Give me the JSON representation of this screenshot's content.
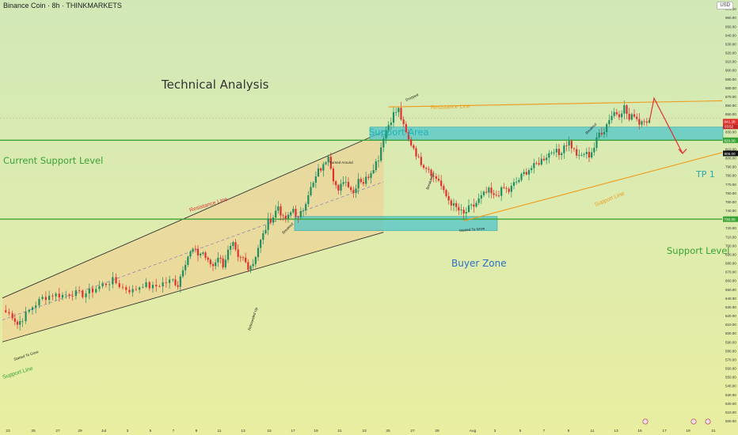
{
  "title_bar": "Binance Coin · 8h · THINKMARKETS",
  "currency": "USD",
  "heading": "Technical Analysis",
  "colors": {
    "bg_top": "#d1e8b6",
    "bg_bottom": "#e9eea0",
    "up": "#1f8f63",
    "down": "#e0312f",
    "support_line": "#3aa335",
    "resistance_line": "#e0312f",
    "orange": "#ef9a1a",
    "zone_fill": "#4fc6c9",
    "blue_text": "#2b6fc7",
    "channel_fill": "#f2cc8f",
    "channel_edge": "#333333",
    "price_label": "#e0312f"
  },
  "labels": {
    "current_support": "Current Support Level",
    "support_area": "Support Area",
    "buyer_zone": "Buyer Zone",
    "support_level": "Support Level",
    "tp1": "TP 1",
    "resistance_line_channel": "Resistance Line",
    "resistance_line_top": "Resistance Line",
    "support_line_bottom": "Support Line",
    "support_line_right": "Support Line",
    "turned_around": "Turned Around",
    "breakout_1": "Breakout",
    "breakout_2": "Breakout",
    "breakdown": "Breakdown",
    "dropped": "Dropped",
    "started_grow_1": "Started To Grow",
    "started_grow_2": "Started To Grow",
    "rebounded_up": "Rebounded Up"
  },
  "price_tags": {
    "current": "841.28",
    "timer": "03:52",
    "level_820": "820.00",
    "level_805": "805.00",
    "level_730": "730.00"
  },
  "chart_data": {
    "type": "candlestick",
    "symbol": "Binance Coin",
    "interval": "8h",
    "ylim": [
      500,
      980
    ],
    "y_ticks": [
      500,
      510,
      520,
      530,
      540,
      550,
      560,
      570,
      580,
      590,
      600,
      610,
      620,
      630,
      640,
      650,
      660,
      670,
      680,
      690,
      700,
      710,
      720,
      730,
      740,
      750,
      760,
      770,
      780,
      790,
      800,
      810,
      820,
      830,
      840,
      850,
      860,
      870,
      880,
      890,
      900,
      910,
      920,
      930,
      940,
      950,
      960,
      970
    ],
    "x_ticks": [
      "23",
      "25",
      "27",
      "29",
      "Jul",
      "3",
      "5",
      "7",
      "9",
      "11",
      "13",
      "15",
      "17",
      "19",
      "21",
      "23",
      "25",
      "27",
      "29",
      "Aug",
      "3",
      "5",
      "7",
      "9",
      "11",
      "13",
      "15",
      "17",
      "19",
      "21"
    ],
    "horizontal_levels": [
      820,
      730
    ],
    "zones": [
      {
        "name": "Support Area",
        "from": 820,
        "to": 835
      },
      {
        "name": "Buyer Zone",
        "from": 717,
        "to": 733
      }
    ],
    "close_path": [
      [
        0,
        626
      ],
      [
        2,
        620
      ],
      [
        3,
        610
      ],
      [
        4,
        617
      ],
      [
        6,
        630
      ],
      [
        8,
        640
      ],
      [
        10,
        644
      ],
      [
        12,
        643
      ],
      [
        14,
        646
      ],
      [
        16,
        644
      ],
      [
        18,
        649
      ],
      [
        20,
        655
      ],
      [
        22,
        660
      ],
      [
        24,
        652
      ],
      [
        26,
        648
      ],
      [
        28,
        656
      ],
      [
        30,
        652
      ],
      [
        32,
        657
      ],
      [
        34,
        660
      ],
      [
        35,
        655
      ],
      [
        36,
        675
      ],
      [
        37,
        688
      ],
      [
        38,
        695
      ],
      [
        39,
        690
      ],
      [
        40,
        692
      ],
      [
        41,
        681
      ],
      [
        42,
        677
      ],
      [
        43,
        688
      ],
      [
        44,
        678
      ],
      [
        45,
        693
      ],
      [
        46,
        700
      ],
      [
        47,
        684
      ],
      [
        48,
        685
      ],
      [
        49,
        676
      ],
      [
        50,
        680
      ],
      [
        51,
        698
      ],
      [
        52,
        712
      ],
      [
        53,
        727
      ],
      [
        54,
        733
      ],
      [
        55,
        745
      ],
      [
        56,
        730
      ],
      [
        57,
        732
      ],
      [
        58,
        742
      ],
      [
        59,
        730
      ],
      [
        60,
        742
      ],
      [
        61,
        760
      ],
      [
        62,
        770
      ],
      [
        63,
        785
      ],
      [
        64,
        790
      ],
      [
        65,
        805
      ],
      [
        66,
        777
      ],
      [
        67,
        760
      ],
      [
        68,
        775
      ],
      [
        69,
        770
      ],
      [
        70,
        760
      ],
      [
        71,
        777
      ],
      [
        72,
        772
      ],
      [
        73,
        780
      ],
      [
        74,
        790
      ],
      [
        75,
        800
      ],
      [
        76,
        825
      ],
      [
        77,
        838
      ],
      [
        78,
        850
      ],
      [
        79,
        855
      ],
      [
        80,
        835
      ],
      [
        81,
        820
      ],
      [
        82,
        812
      ],
      [
        83,
        798
      ],
      [
        84,
        792
      ],
      [
        85,
        788
      ],
      [
        86,
        778
      ],
      [
        87,
        775
      ],
      [
        88,
        760
      ],
      [
        89,
        752
      ],
      [
        90,
        745
      ],
      [
        91,
        740
      ],
      [
        92,
        735
      ],
      [
        93,
        742
      ],
      [
        94,
        745
      ],
      [
        95,
        752
      ],
      [
        96,
        758
      ],
      [
        97,
        762
      ],
      [
        98,
        755
      ],
      [
        99,
        760
      ],
      [
        100,
        765
      ],
      [
        101,
        762
      ],
      [
        102,
        770
      ],
      [
        103,
        775
      ],
      [
        104,
        782
      ],
      [
        105,
        787
      ],
      [
        106,
        790
      ],
      [
        107,
        795
      ],
      [
        108,
        800
      ],
      [
        109,
        805
      ],
      [
        110,
        810
      ],
      [
        111,
        803
      ],
      [
        112,
        815
      ],
      [
        113,
        818
      ],
      [
        114,
        808
      ],
      [
        115,
        800
      ],
      [
        116,
        805
      ],
      [
        117,
        803
      ],
      [
        118,
        812
      ],
      [
        119,
        828
      ],
      [
        120,
        832
      ],
      [
        121,
        845
      ],
      [
        122,
        852
      ],
      [
        123,
        850
      ],
      [
        124,
        858
      ],
      [
        125,
        843
      ],
      [
        126,
        850
      ],
      [
        127,
        840
      ],
      [
        128,
        845
      ],
      [
        129,
        841
      ]
    ],
    "channel": {
      "upper": [
        [
          640,
          0
        ],
        [
          830,
          76
        ]
      ],
      "lower": [
        [
          590,
          0
        ],
        [
          715,
          76
        ]
      ],
      "midline": true
    },
    "orange_resistance": [
      [
        858,
        77
      ],
      [
        865,
        130
      ]
    ],
    "orange_support": [
      [
        728,
        92
      ],
      [
        806,
        130
      ]
    ],
    "projection": [
      [
        841,
        129
      ],
      [
        862,
        131
      ],
      [
        805,
        138
      ]
    ],
    "current_price": 841.28,
    "targets": [
      {
        "name": "TP 1",
        "price": 805
      }
    ]
  }
}
